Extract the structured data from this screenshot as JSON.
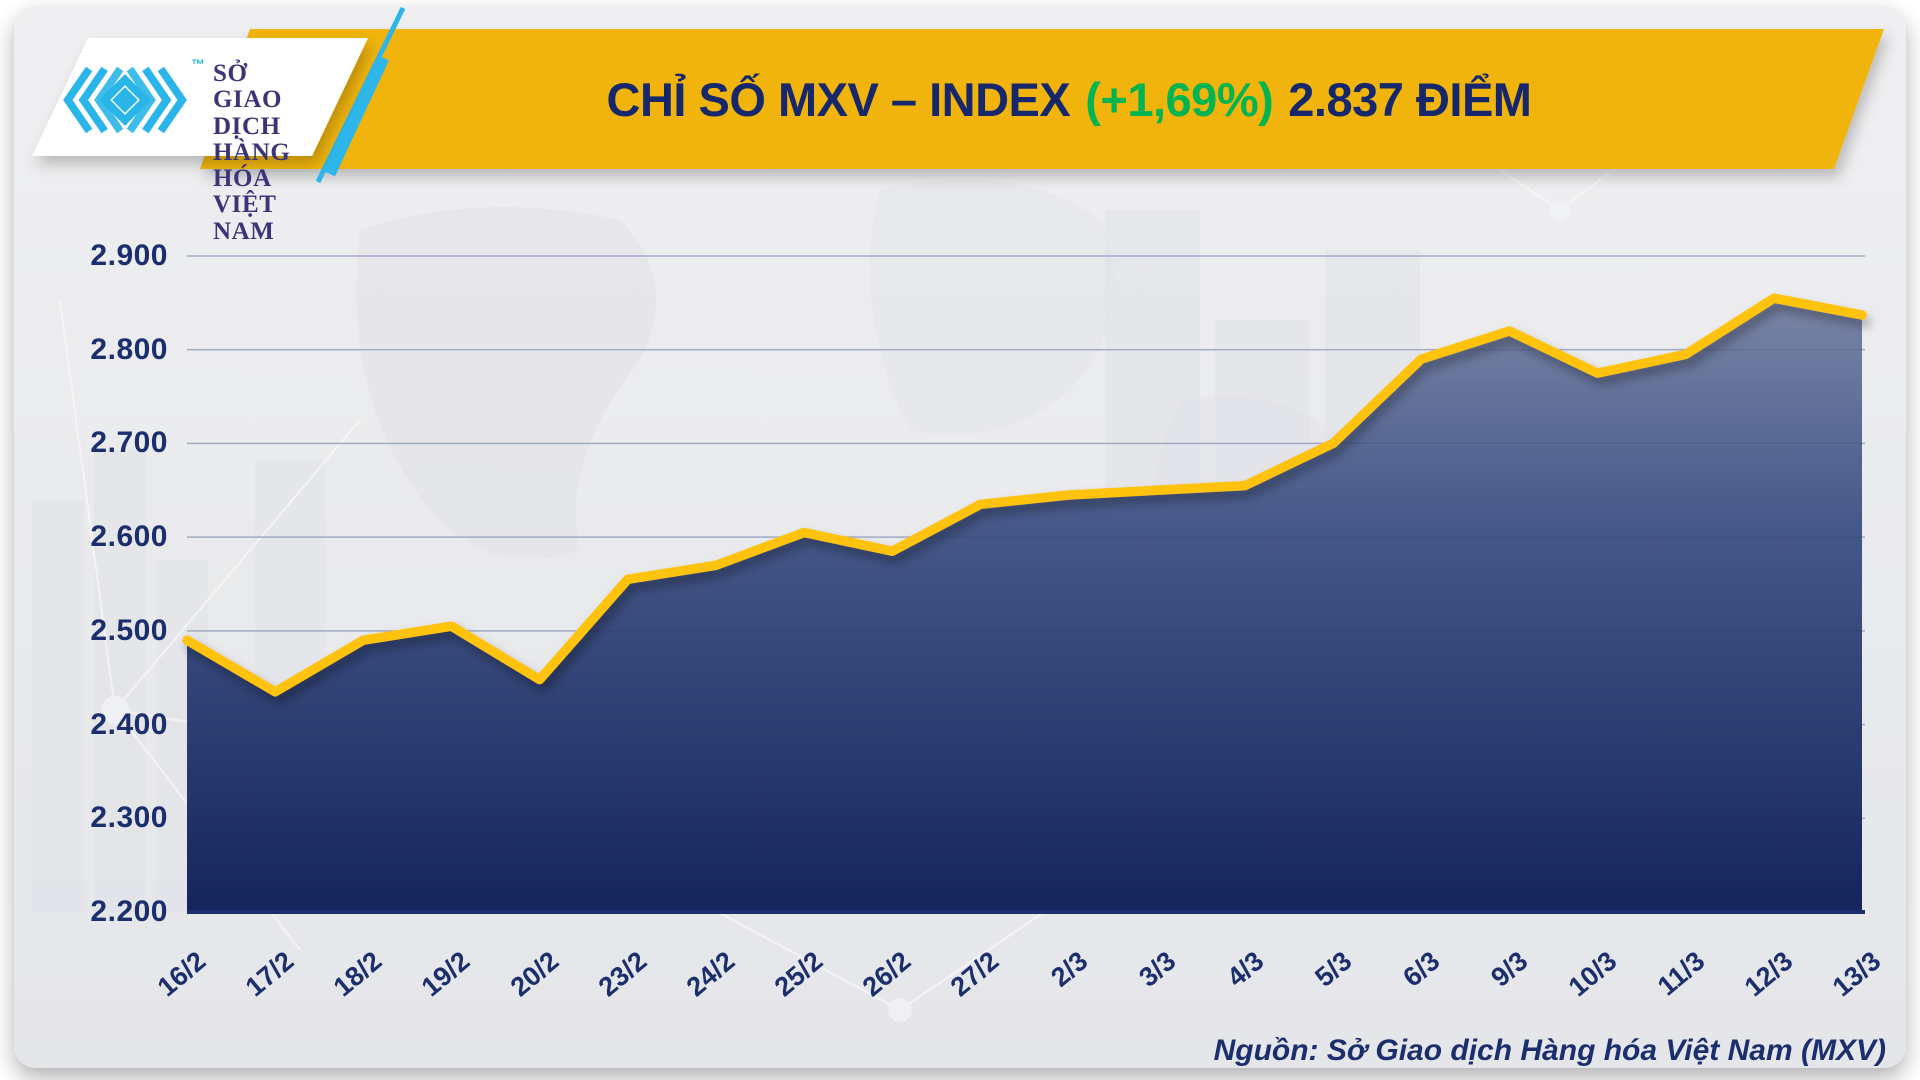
{
  "header": {
    "logo": {
      "org_lines": [
        "SỞ GIAO DỊCH",
        "HÀNG HÓA",
        "VIỆT NAM"
      ],
      "trademark": "™"
    },
    "title": {
      "prefix": "CHỈ SỐ MXV – INDEX",
      "change": "(+1,69%)",
      "points": "2.837 ĐIỂM"
    }
  },
  "footer": {
    "source": "Nguồn: Sở Giao dịch Hàng hóa Việt Nam (MXV)"
  },
  "colors": {
    "banner_yellow": "#F0B40B",
    "line_yellow": "#FFC20E",
    "navy": "#1B2E6E",
    "title_navy": "#16286B",
    "green": "#00B551",
    "logo_cyan": "#29B5E8",
    "logo_indigo": "#3C3478",
    "fill_top": "#7E89A8",
    "fill_mid": "#47598A",
    "fill_bottom": "#14255B",
    "gridline": "#B9C0D3"
  },
  "chart_data": {
    "type": "area",
    "title": "CHỈ SỐ MXV – INDEX (+1,69%) 2.837 ĐIỂM",
    "xlabel": "",
    "ylabel": "",
    "legend": false,
    "grid": true,
    "categories": [
      "16/2",
      "17/2",
      "18/2",
      "19/2",
      "20/2",
      "23/2",
      "24/2",
      "25/2",
      "26/2",
      "27/2",
      "2/3",
      "3/3",
      "4/3",
      "5/3",
      "6/3",
      "9/3",
      "10/3",
      "11/3",
      "12/3",
      "13/3"
    ],
    "values": [
      2490,
      2435,
      2490,
      2505,
      2448,
      2555,
      2570,
      2605,
      2585,
      2635,
      2645,
      2650,
      2655,
      2700,
      2790,
      2820,
      2775,
      2795,
      2855,
      2837
    ],
    "ylim": [
      2200,
      2900
    ],
    "ytick_values": [
      2200,
      2300,
      2400,
      2500,
      2600,
      2700,
      2800,
      2900
    ],
    "ytick_labels": [
      "2.200",
      "2.300",
      "2.400",
      "2.500",
      "2.600",
      "2.700",
      "2.800",
      "2.900"
    ]
  }
}
